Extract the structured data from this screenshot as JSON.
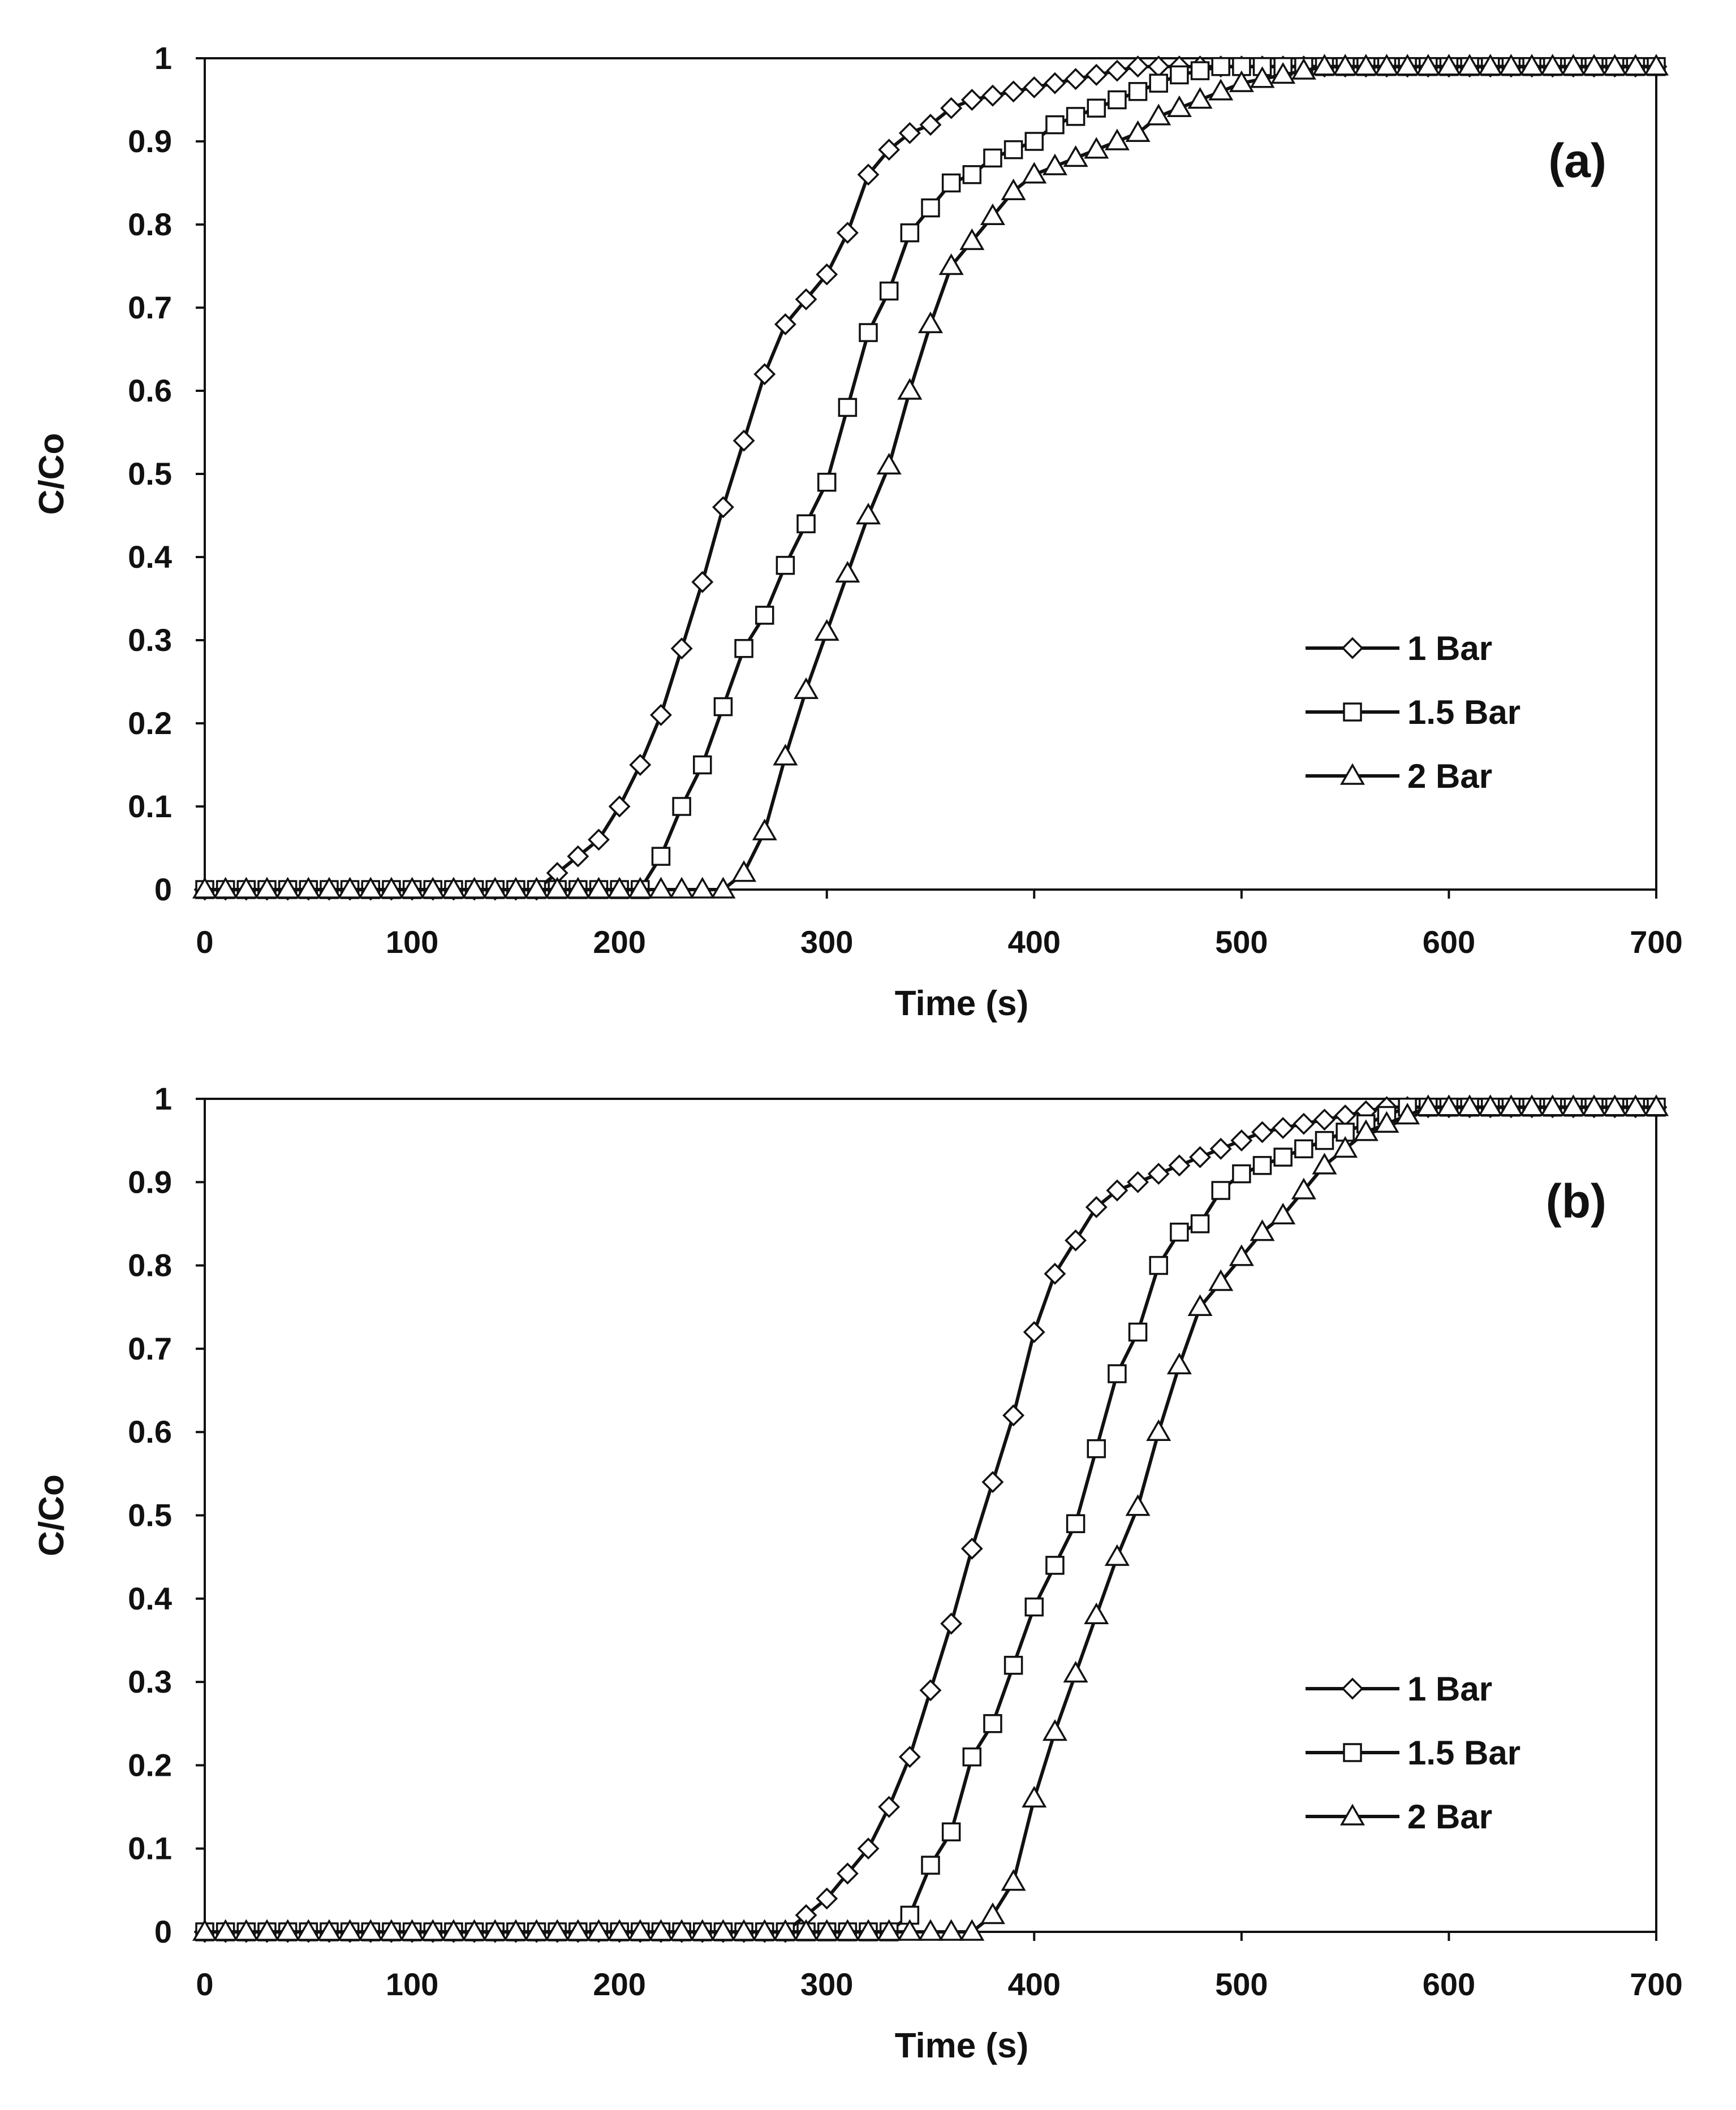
{
  "chart_data": [
    {
      "type": "line",
      "panel_label": "(a)",
      "title": "",
      "xlabel": "Time (s)",
      "ylabel": "C/Co",
      "xlim": [
        0,
        700
      ],
      "ylim": [
        0,
        1
      ],
      "xticks": [
        "0",
        "100",
        "200",
        "300",
        "400",
        "500",
        "600",
        "700"
      ],
      "yticks": [
        "0",
        "0.1",
        "0.2",
        "0.3",
        "0.4",
        "0.5",
        "0.6",
        "0.7",
        "0.8",
        "0.9",
        "1"
      ],
      "grid": false,
      "legend_position": "lower-right",
      "series": [
        {
          "name": "1 Bar",
          "marker": "diamond",
          "x": [
            0,
            10,
            20,
            30,
            40,
            50,
            60,
            70,
            80,
            90,
            100,
            110,
            120,
            130,
            140,
            150,
            160,
            170,
            180,
            190,
            200,
            210,
            220,
            230,
            240,
            250,
            260,
            270,
            280,
            290,
            300,
            310,
            320,
            330,
            340,
            350,
            360,
            370,
            380,
            390,
            400,
            410,
            420,
            430,
            440,
            450,
            460,
            470,
            480,
            490,
            500,
            510,
            520,
            530,
            540,
            550,
            560,
            570,
            580,
            590,
            600,
            610,
            620,
            630,
            640,
            650,
            660,
            670,
            680,
            690,
            700
          ],
          "y": [
            0,
            0,
            0,
            0,
            0,
            0,
            0,
            0,
            0,
            0,
            0,
            0,
            0,
            0,
            0,
            0,
            0,
            0.02,
            0.04,
            0.06,
            0.1,
            0.15,
            0.21,
            0.29,
            0.37,
            0.46,
            0.54,
            0.62,
            0.68,
            0.71,
            0.74,
            0.79,
            0.86,
            0.89,
            0.91,
            0.92,
            0.94,
            0.95,
            0.955,
            0.96,
            0.965,
            0.97,
            0.975,
            0.98,
            0.985,
            0.99,
            0.99,
            0.99,
            0.99,
            0.99,
            0.99,
            0.99,
            0.99,
            0.99,
            0.99,
            0.99,
            0.99,
            0.99,
            0.99,
            0.99,
            0.99,
            0.99,
            0.99,
            0.99,
            0.99,
            0.99,
            0.99,
            0.99,
            0.99,
            0.99,
            0.99
          ]
        },
        {
          "name": "1.5 Bar",
          "marker": "square",
          "x": [
            0,
            10,
            20,
            30,
            40,
            50,
            60,
            70,
            80,
            90,
            100,
            110,
            120,
            130,
            140,
            150,
            160,
            170,
            180,
            190,
            200,
            210,
            220,
            230,
            240,
            250,
            260,
            270,
            280,
            290,
            300,
            310,
            320,
            330,
            340,
            350,
            360,
            370,
            380,
            390,
            400,
            410,
            420,
            430,
            440,
            450,
            460,
            470,
            480,
            490,
            500,
            510,
            520,
            530,
            540,
            550,
            560,
            570,
            580,
            590,
            600,
            610,
            620,
            630,
            640,
            650,
            660,
            670,
            680,
            690,
            700
          ],
          "y": [
            0,
            0,
            0,
            0,
            0,
            0,
            0,
            0,
            0,
            0,
            0,
            0,
            0,
            0,
            0,
            0,
            0,
            0,
            0,
            0,
            0,
            0,
            0.04,
            0.1,
            0.15,
            0.22,
            0.29,
            0.33,
            0.39,
            0.44,
            0.49,
            0.58,
            0.67,
            0.72,
            0.79,
            0.82,
            0.85,
            0.86,
            0.88,
            0.89,
            0.9,
            0.92,
            0.93,
            0.94,
            0.95,
            0.96,
            0.97,
            0.98,
            0.985,
            0.99,
            0.99,
            0.99,
            0.99,
            0.99,
            0.99,
            0.99,
            0.99,
            0.99,
            0.99,
            0.99,
            0.99,
            0.99,
            0.99,
            0.99,
            0.99,
            0.99,
            0.99,
            0.99,
            0.99,
            0.99,
            0.99
          ]
        },
        {
          "name": "2 Bar",
          "marker": "triangle",
          "x": [
            0,
            10,
            20,
            30,
            40,
            50,
            60,
            70,
            80,
            90,
            100,
            110,
            120,
            130,
            140,
            150,
            160,
            170,
            180,
            190,
            200,
            210,
            220,
            230,
            240,
            250,
            260,
            270,
            280,
            290,
            300,
            310,
            320,
            330,
            340,
            350,
            360,
            370,
            380,
            390,
            400,
            410,
            420,
            430,
            440,
            450,
            460,
            470,
            480,
            490,
            500,
            510,
            520,
            530,
            540,
            550,
            560,
            570,
            580,
            590,
            600,
            610,
            620,
            630,
            640,
            650,
            660,
            670,
            680,
            690,
            700
          ],
          "y": [
            0,
            0,
            0,
            0,
            0,
            0,
            0,
            0,
            0,
            0,
            0,
            0,
            0,
            0,
            0,
            0,
            0,
            0,
            0,
            0,
            0,
            0,
            0,
            0,
            0,
            0,
            0.02,
            0.07,
            0.16,
            0.24,
            0.31,
            0.38,
            0.45,
            0.51,
            0.6,
            0.68,
            0.75,
            0.78,
            0.81,
            0.84,
            0.86,
            0.87,
            0.88,
            0.89,
            0.9,
            0.91,
            0.93,
            0.94,
            0.95,
            0.96,
            0.97,
            0.975,
            0.98,
            0.985,
            0.99,
            0.99,
            0.99,
            0.99,
            0.99,
            0.99,
            0.99,
            0.99,
            0.99,
            0.99,
            0.99,
            0.99,
            0.99,
            0.99,
            0.99,
            0.99,
            0.99
          ]
        }
      ]
    },
    {
      "type": "line",
      "panel_label": "(b)",
      "title": "",
      "xlabel": "Time (s)",
      "ylabel": "C/Co",
      "xlim": [
        0,
        700
      ],
      "ylim": [
        0,
        1
      ],
      "xticks": [
        "0",
        "100",
        "200",
        "300",
        "400",
        "500",
        "600",
        "700"
      ],
      "yticks": [
        "0",
        "0.1",
        "0.2",
        "0.3",
        "0.4",
        "0.5",
        "0.6",
        "0.7",
        "0.8",
        "0.9",
        "1"
      ],
      "grid": false,
      "legend_position": "lower-right",
      "series": [
        {
          "name": "1 Bar",
          "marker": "diamond",
          "x": [
            0,
            10,
            20,
            30,
            40,
            50,
            60,
            70,
            80,
            90,
            100,
            110,
            120,
            130,
            140,
            150,
            160,
            170,
            180,
            190,
            200,
            210,
            220,
            230,
            240,
            250,
            260,
            270,
            280,
            290,
            300,
            310,
            320,
            330,
            340,
            350,
            360,
            370,
            380,
            390,
            400,
            410,
            420,
            430,
            440,
            450,
            460,
            470,
            480,
            490,
            500,
            510,
            520,
            530,
            540,
            550,
            560,
            570,
            580,
            590,
            600,
            610,
            620,
            630,
            640,
            650,
            660,
            670,
            680,
            690,
            700
          ],
          "y": [
            0,
            0,
            0,
            0,
            0,
            0,
            0,
            0,
            0,
            0,
            0,
            0,
            0,
            0,
            0,
            0,
            0,
            0,
            0,
            0,
            0,
            0,
            0,
            0,
            0,
            0,
            0,
            0,
            0,
            0.02,
            0.04,
            0.07,
            0.1,
            0.15,
            0.21,
            0.29,
            0.37,
            0.46,
            0.54,
            0.62,
            0.72,
            0.79,
            0.83,
            0.87,
            0.89,
            0.9,
            0.91,
            0.92,
            0.93,
            0.94,
            0.95,
            0.96,
            0.965,
            0.97,
            0.975,
            0.98,
            0.985,
            0.99,
            0.99,
            0.99,
            0.99,
            0.99,
            0.99,
            0.99,
            0.99,
            0.99,
            0.99,
            0.99,
            0.99,
            0.99,
            0.99
          ]
        },
        {
          "name": "1.5 Bar",
          "marker": "square",
          "x": [
            0,
            10,
            20,
            30,
            40,
            50,
            60,
            70,
            80,
            90,
            100,
            110,
            120,
            130,
            140,
            150,
            160,
            170,
            180,
            190,
            200,
            210,
            220,
            230,
            240,
            250,
            260,
            270,
            280,
            290,
            300,
            310,
            320,
            330,
            340,
            350,
            360,
            370,
            380,
            390,
            400,
            410,
            420,
            430,
            440,
            450,
            460,
            470,
            480,
            490,
            500,
            510,
            520,
            530,
            540,
            550,
            560,
            570,
            580,
            590,
            600,
            610,
            620,
            630,
            640,
            650,
            660,
            670,
            680,
            690,
            700
          ],
          "y": [
            0,
            0,
            0,
            0,
            0,
            0,
            0,
            0,
            0,
            0,
            0,
            0,
            0,
            0,
            0,
            0,
            0,
            0,
            0,
            0,
            0,
            0,
            0,
            0,
            0,
            0,
            0,
            0,
            0,
            0,
            0,
            0,
            0,
            0,
            0.02,
            0.08,
            0.12,
            0.21,
            0.25,
            0.32,
            0.39,
            0.44,
            0.49,
            0.58,
            0.67,
            0.72,
            0.8,
            0.84,
            0.85,
            0.89,
            0.91,
            0.92,
            0.93,
            0.94,
            0.95,
            0.96,
            0.97,
            0.98,
            0.99,
            0.99,
            0.99,
            0.99,
            0.99,
            0.99,
            0.99,
            0.99,
            0.99,
            0.99,
            0.99,
            0.99,
            0.99
          ]
        },
        {
          "name": "2 Bar",
          "marker": "triangle",
          "x": [
            0,
            10,
            20,
            30,
            40,
            50,
            60,
            70,
            80,
            90,
            100,
            110,
            120,
            130,
            140,
            150,
            160,
            170,
            180,
            190,
            200,
            210,
            220,
            230,
            240,
            250,
            260,
            270,
            280,
            290,
            300,
            310,
            320,
            330,
            340,
            350,
            360,
            370,
            380,
            390,
            400,
            410,
            420,
            430,
            440,
            450,
            460,
            470,
            480,
            490,
            500,
            510,
            520,
            530,
            540,
            550,
            560,
            570,
            580,
            590,
            600,
            610,
            620,
            630,
            640,
            650,
            660,
            670,
            680,
            690,
            700
          ],
          "y": [
            0,
            0,
            0,
            0,
            0,
            0,
            0,
            0,
            0,
            0,
            0,
            0,
            0,
            0,
            0,
            0,
            0,
            0,
            0,
            0,
            0,
            0,
            0,
            0,
            0,
            0,
            0,
            0,
            0,
            0,
            0,
            0,
            0,
            0,
            0,
            0,
            0,
            0,
            0.02,
            0.06,
            0.16,
            0.24,
            0.31,
            0.38,
            0.45,
            0.51,
            0.6,
            0.68,
            0.75,
            0.78,
            0.81,
            0.84,
            0.86,
            0.89,
            0.92,
            0.94,
            0.96,
            0.97,
            0.98,
            0.99,
            0.99,
            0.99,
            0.99,
            0.99,
            0.99,
            0.99,
            0.99,
            0.99,
            0.99,
            0.99,
            0.99
          ]
        }
      ]
    }
  ]
}
